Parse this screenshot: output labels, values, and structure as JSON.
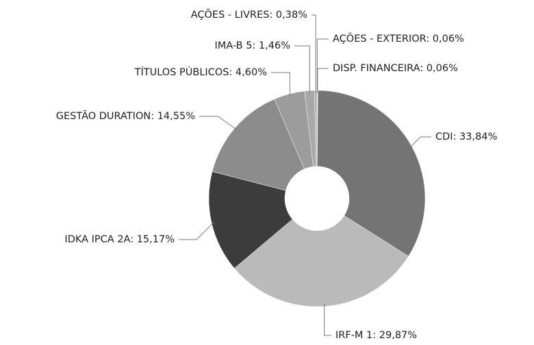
{
  "chart_data": {
    "type": "donut",
    "values": [
      0.06,
      0.06,
      33.84,
      29.87,
      15.17,
      14.55,
      4.6,
      1.46,
      0.38
    ],
    "value_labels": [
      "AÇÕES - EXTERIOR: 0,06%",
      "DISP. FINANCEIRA: 0,06%",
      "CDI: 33,84%",
      "IRF-M 1: 29,87%",
      "IDKA IPCA 2A: 15,17%",
      "GESTÃO DURATION: 14,55%",
      "TÍTULOS PÚBLICOS: 4,60%",
      "IMA-B 5: 1,46%",
      "AÇÕES - LIVRES: 0,38%"
    ],
    "colors": [
      "#8a8a8a",
      "#9a9a9a",
      "#747474",
      "#bababa",
      "#3c3c3c",
      "#8c8c8c",
      "#9c9c9c",
      "#a8a8a8",
      "#b0b0b0"
    ]
  }
}
